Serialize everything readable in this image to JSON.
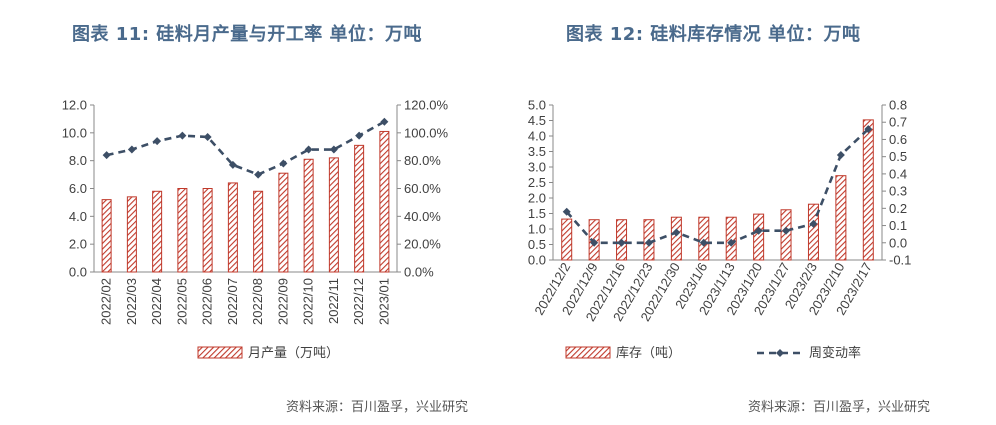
{
  "charts": {
    "left": {
      "title": "图表 11: 硅料月产量与开工率  单位：万吨",
      "source": "资料来源：百川盈孚，兴业研究"
    },
    "right": {
      "title": "图表 12: 硅料库存情况  单位：万吨",
      "source": "资料来源：百川盈孚，兴业研究"
    }
  },
  "colors": {
    "bar": "#c0392b",
    "line": "#3d4f66",
    "title": "#4a6a8c"
  },
  "chart_data": [
    {
      "type": "bar",
      "title": "图表 11: 硅料月产量与开工率  单位：万吨",
      "categories": [
        "2022/02",
        "2022/03",
        "2022/04",
        "2022/05",
        "2022/06",
        "2022/07",
        "2022/08",
        "2022/09",
        "2022/10",
        "2022/11",
        "2022/12",
        "2023/01"
      ],
      "series": [
        {
          "name": "月产量（万吨）",
          "type": "bar",
          "axis": "left",
          "values": [
            5.2,
            5.4,
            5.8,
            6.0,
            6.0,
            6.4,
            5.8,
            7.1,
            8.1,
            8.2,
            9.1,
            10.1
          ]
        },
        {
          "type": "line",
          "axis": "right",
          "values": [
            84,
            88,
            94,
            98,
            97,
            77,
            70,
            78,
            88,
            88,
            98,
            108
          ]
        }
      ],
      "ylim": [
        0,
        12
      ],
      "yticks": [
        "0.0",
        "2.0",
        "4.0",
        "6.0",
        "8.0",
        "10.0",
        "12.0"
      ],
      "y2lim": [
        0,
        120
      ],
      "y2ticks": [
        "0.0%",
        "20.0%",
        "40.0%",
        "60.0%",
        "80.0%",
        "100.0%",
        "120.0%"
      ],
      "legend": [
        "月产量（万吨）"
      ],
      "legend_position": "bottom",
      "grid": false
    },
    {
      "type": "bar",
      "title": "图表 12: 硅料库存情况  单位：万吨",
      "categories": [
        "2022/12/2",
        "2022/12/9",
        "2022/12/16",
        "2022/12/23",
        "2022/12/30",
        "2023/1/6",
        "2023/1/13",
        "2023/1/20",
        "2023/1/27",
        "2023/2/3",
        "2023/2/10",
        "2023/2/17"
      ],
      "series": [
        {
          "name": "库存（吨）",
          "type": "bar",
          "axis": "left",
          "values": [
            1.32,
            1.3,
            1.3,
            1.3,
            1.38,
            1.38,
            1.38,
            1.48,
            1.62,
            1.8,
            2.72,
            4.52
          ]
        },
        {
          "name": "周变动率",
          "type": "line",
          "axis": "right",
          "values": [
            0.18,
            0.0,
            0.0,
            0.0,
            0.06,
            0.0,
            0.0,
            0.07,
            0.07,
            0.11,
            0.51,
            0.66
          ]
        }
      ],
      "ylim": [
        0,
        5
      ],
      "yticks": [
        "0.0",
        "0.5",
        "1.0",
        "1.5",
        "2.0",
        "2.5",
        "3.0",
        "3.5",
        "4.0",
        "4.5",
        "5.0"
      ],
      "y2lim": [
        -0.1,
        0.8
      ],
      "y2ticks": [
        "-0.1",
        "0.0",
        "0.1",
        "0.2",
        "0.3",
        "0.4",
        "0.5",
        "0.6",
        "0.7",
        "0.8"
      ],
      "legend": [
        "库存（吨）",
        "周变动率"
      ],
      "legend_position": "bottom",
      "grid": false
    }
  ]
}
